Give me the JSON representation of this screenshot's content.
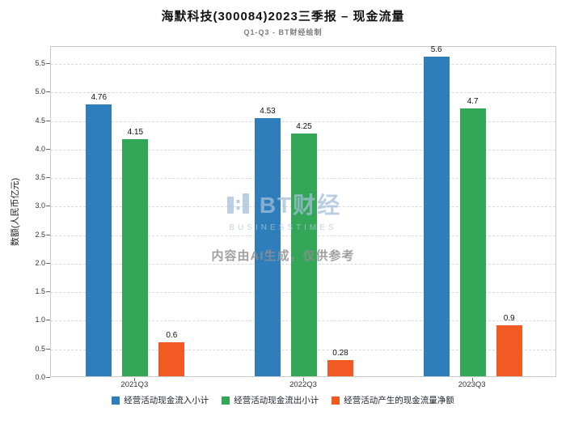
{
  "title": "海默科技(300084)2023三季报 – 现金流量",
  "subtitle": "Q1-Q3 - BT财经绘制",
  "watermark": {
    "brand": "BT财经",
    "brand_sub": "BUSINESSTIMES",
    "notice": "内容由AI生成，仅供参考"
  },
  "chart_data": {
    "type": "bar",
    "title": "海默科技(300084)2023三季报 – 现金流量",
    "subtitle": "Q1-Q3 - BT财经绘制",
    "categories": [
      "2021Q3",
      "2022Q3",
      "2023Q3"
    ],
    "series": [
      {
        "name": "经营活动现金流入小计",
        "color": "#2e7ebb",
        "values": [
          4.76,
          4.53,
          5.6
        ]
      },
      {
        "name": "经营活动现金流出小计",
        "color": "#33a657",
        "values": [
          4.15,
          4.25,
          4.7
        ]
      },
      {
        "name": "经营活动产生的现金流量净额",
        "color": "#f15a22",
        "values": [
          0.6,
          0.28,
          0.9
        ]
      }
    ],
    "xlabel": "",
    "ylabel": "数额(人民币亿元)",
    "ylim": [
      0,
      5.8
    ],
    "yticks": [
      0.0,
      0.5,
      1.0,
      1.5,
      2.0,
      2.5,
      3.0,
      3.5,
      4.0,
      4.5,
      5.0,
      5.5
    ],
    "grid": true,
    "legend_position": "bottom"
  }
}
